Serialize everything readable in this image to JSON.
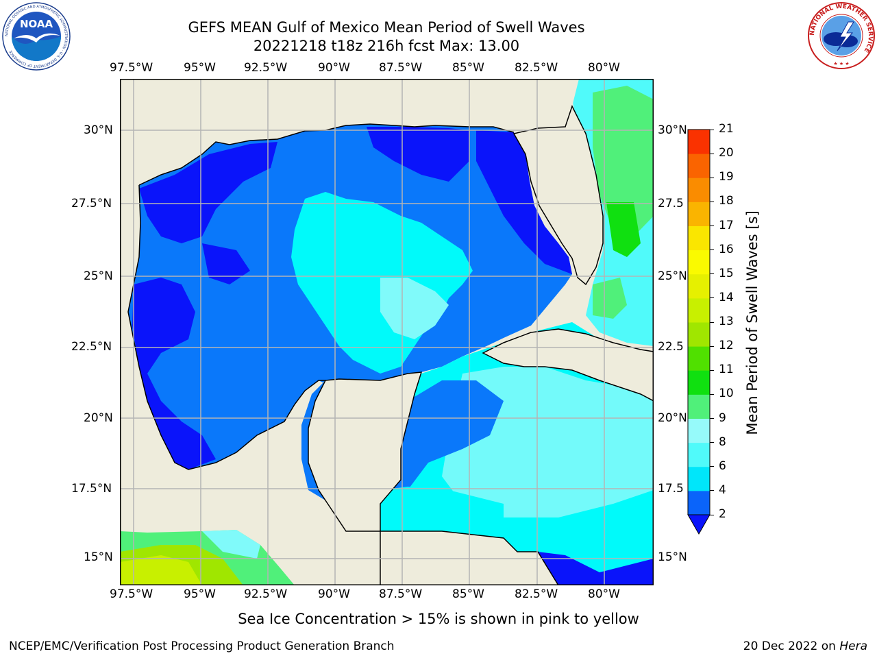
{
  "header": {
    "title_line1": "GEFS MEAN Gulf of Mexico Mean Period of Swell Waves",
    "title_line2": "20221218 t18z 216h fcst   Max: 13.00"
  },
  "map": {
    "lon_labels": [
      "97.5°W",
      "95°W",
      "92.5°W",
      "90°W",
      "87.5°W",
      "85°W",
      "82.5°W",
      "80°W"
    ],
    "lat_labels_left": [
      "30°N",
      "27.5°N",
      "25°N",
      "22.5°N",
      "20°N",
      "17.5°N",
      "15°N"
    ],
    "lat_labels_right": [
      "30°N",
      "27.5",
      "25°N",
      "22.5",
      "20°N",
      "17.5",
      "15°N"
    ]
  },
  "colorbar": {
    "label": "Mean Period of Swell Waves [s]",
    "ticks": [
      "2",
      "4",
      "6",
      "8",
      "9",
      "10",
      "11",
      "12",
      "13",
      "14",
      "15",
      "16",
      "17",
      "18",
      "19",
      "20",
      "21"
    ],
    "colors": [
      "#0a64fa",
      "#00e6fa",
      "#50fafa",
      "#96fafa",
      "#50f07a",
      "#10e010",
      "#50e000",
      "#a0e600",
      "#c8f000",
      "#e6f000",
      "#fafa00",
      "#fae600",
      "#fab400",
      "#fa8c00",
      "#fa6400",
      "#fa3200",
      "#fa0000"
    ],
    "extend_color": "#0a14fa"
  },
  "colors": {
    "land": "#eeecdc",
    "deep_blue": "#0a14fa",
    "mid_blue": "#0a78fa",
    "cyan": "#00fafa",
    "light_cyan": "#80fafa",
    "green": "#50f07a",
    "bright_green": "#10e010",
    "yellow_green": "#c8f000",
    "grid": "#b4b4b4"
  },
  "footer": {
    "note": "Sea Ice Concentration > 15% is shown in pink to yellow",
    "left": "NCEP/EMC/Verification Post Processing Product Generation Branch",
    "right_prefix": "20 Dec 2022 on ",
    "right_machine": "Hera"
  },
  "logos": {
    "noaa_text": "NOAA",
    "noaa_ring_text": "NATIONAL OCEANIC AND ATMOSPHERIC ADMINISTRATION · U.S. DEPARTMENT OF COMMERCE",
    "nws_ring_text": "NATIONAL WEATHER SERVICE"
  }
}
